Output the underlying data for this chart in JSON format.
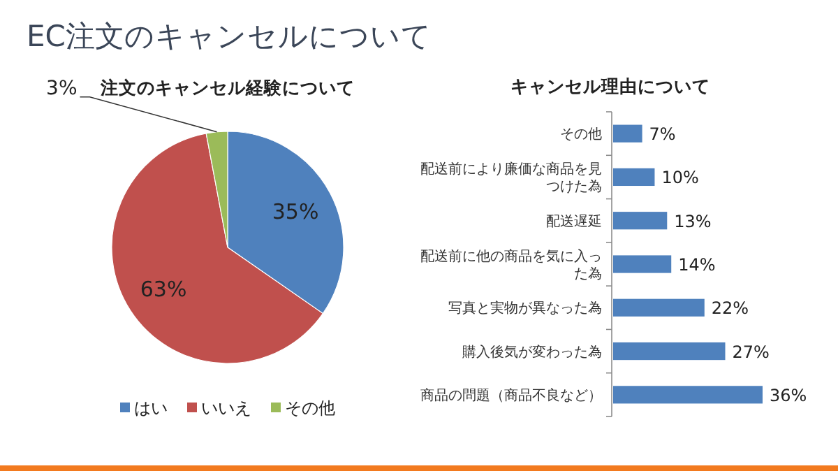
{
  "chart_data": [
    {
      "type": "pie",
      "title": "EC注文のキャンセルについて",
      "subtitle": "注文のキャンセル経験について",
      "categories": [
        "はい",
        "いいえ",
        "その他"
      ],
      "values": [
        35,
        63,
        3
      ],
      "colors": [
        "#4f81bd",
        "#c0504d",
        "#9bbb59"
      ],
      "value_labels": [
        "35%",
        "63%",
        "3%"
      ],
      "legend": "bottom"
    },
    {
      "type": "bar",
      "orientation": "horizontal",
      "title": "キャンセル理由について",
      "categories": [
        "その他",
        "配送前により廉価な商品を見つけた為",
        "配送遅延",
        "配送前に他の商品を気に入った為",
        "写真と実物が異なった為",
        "購入後気が変わった為",
        "商品の問題（商品不良など）"
      ],
      "values": [
        7,
        10,
        13,
        14,
        22,
        27,
        36
      ],
      "color": "#4f81bd",
      "value_labels": [
        "7%",
        "10%",
        "13%",
        "14%",
        "22%",
        "27%",
        "36%"
      ]
    }
  ]
}
